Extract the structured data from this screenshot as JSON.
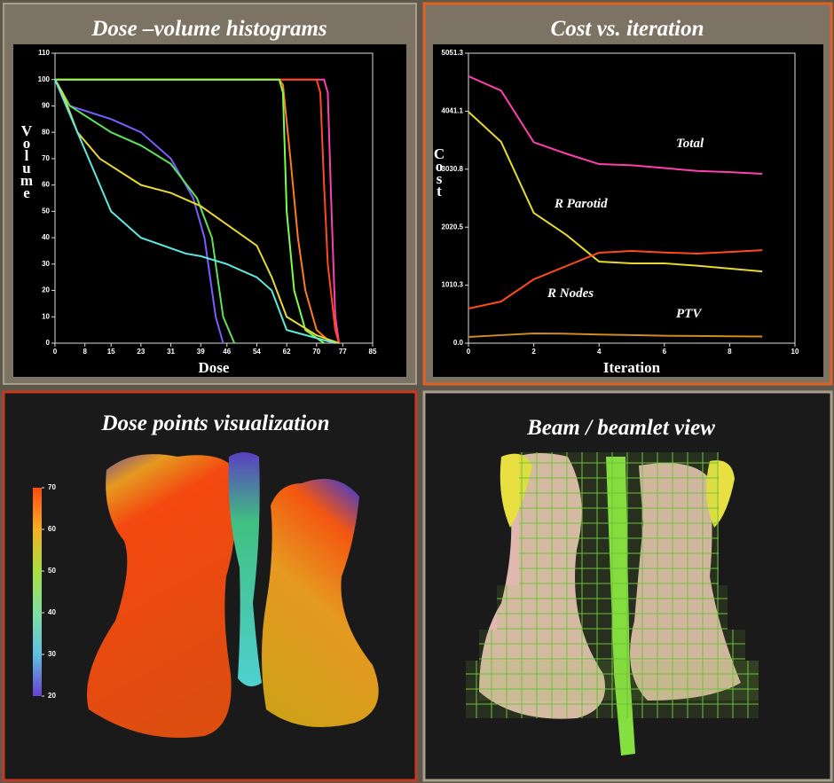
{
  "chart_data": [
    {
      "type": "line",
      "title": "Dose –volume histograms",
      "x_label": "Dose",
      "y_label": "Volume",
      "xlim": [
        0,
        85
      ],
      "xticks": [
        0,
        8,
        15,
        23,
        31,
        39,
        46,
        54,
        62,
        70,
        77,
        85
      ],
      "ylim": [
        0,
        110
      ],
      "yticks": [
        0,
        10,
        20,
        30,
        40,
        50,
        60,
        70,
        80,
        90,
        100,
        110
      ],
      "series": [
        {
          "color": "#ff3fb0",
          "x": [
            0,
            72,
            73,
            74,
            75,
            76
          ],
          "values": [
            100,
            100,
            95,
            50,
            10,
            0
          ]
        },
        {
          "color": "#ff4a1a",
          "x": [
            0,
            70,
            71,
            72,
            73,
            75,
            76
          ],
          "values": [
            100,
            100,
            95,
            60,
            30,
            5,
            0
          ]
        },
        {
          "color": "#ff7a20",
          "x": [
            0,
            60,
            61,
            63,
            65,
            67,
            70,
            74
          ],
          "values": [
            100,
            100,
            98,
            70,
            40,
            20,
            5,
            0
          ]
        },
        {
          "color": "#7cff4a",
          "x": [
            0,
            60,
            61,
            62,
            64,
            67,
            72
          ],
          "values": [
            100,
            100,
            95,
            50,
            20,
            5,
            0
          ]
        },
        {
          "color": "#7a5cff",
          "x": [
            0,
            4,
            15,
            23,
            31,
            37,
            40,
            43,
            45
          ],
          "values": [
            100,
            90,
            85,
            80,
            70,
            55,
            40,
            10,
            0
          ]
        },
        {
          "color": "#5fe05a",
          "x": [
            0,
            4,
            15,
            23,
            31,
            38,
            42,
            45,
            48
          ],
          "values": [
            100,
            90,
            80,
            75,
            68,
            55,
            40,
            10,
            0
          ]
        },
        {
          "color": "#e6d830",
          "x": [
            0,
            2,
            6,
            12,
            23,
            31,
            39,
            46,
            54,
            58,
            62,
            70,
            76
          ],
          "values": [
            100,
            95,
            80,
            70,
            60,
            57,
            52,
            45,
            37,
            25,
            10,
            3,
            0
          ]
        },
        {
          "color": "#60e8e0",
          "x": [
            0,
            3,
            9,
            15,
            23,
            35,
            39,
            46,
            54,
            58,
            62,
            75
          ],
          "values": [
            100,
            90,
            70,
            50,
            40,
            34,
            33,
            30,
            25,
            20,
            5,
            0
          ]
        }
      ]
    },
    {
      "type": "line",
      "title": "Cost vs. iteration",
      "x_label": "Iteration",
      "y_label": "Cost",
      "xlim": [
        0,
        10
      ],
      "xticks": [
        0,
        2,
        4,
        6,
        8,
        10
      ],
      "ylim": [
        0,
        5051.3
      ],
      "yticks": [
        {
          "value": 0,
          "label": "0.0"
        },
        {
          "value": 1010.3,
          "label": "1010.3"
        },
        {
          "value": 2020.5,
          "label": "2020.5"
        },
        {
          "value": 3030.8,
          "label": "3030.8"
        },
        {
          "value": 4041.1,
          "label": "4041.1"
        },
        {
          "value": 5051.3,
          "label": "5051.3"
        }
      ],
      "x": [
        0,
        1,
        2,
        3,
        4,
        5,
        6,
        7,
        8,
        9
      ],
      "series": [
        {
          "name": "Total",
          "color": "#ff3fb0",
          "values": [
            4650,
            4400,
            3500,
            3300,
            3120,
            3100,
            3050,
            3000,
            2980,
            2950
          ]
        },
        {
          "name": "R Parotid",
          "color": "#e6d830",
          "values": [
            4030,
            3506,
            2270,
            1885,
            1421,
            1390,
            1390,
            1350,
            1300,
            1250
          ]
        },
        {
          "name": "R Nodes",
          "color": "#ff4a1a",
          "values": [
            602,
            726,
            1112,
            1344,
            1575,
            1606,
            1580,
            1560,
            1590,
            1620
          ]
        },
        {
          "name": "PTV",
          "color": "#d08a20",
          "values": [
            108,
            140,
            170,
            165,
            150,
            140,
            130,
            125,
            120,
            115
          ]
        }
      ]
    }
  ],
  "dose_points": {
    "title": "Dose points visualization",
    "colorbar_ticks": [
      70,
      60,
      50,
      40,
      30,
      20
    ]
  },
  "beam_view": {
    "title": "Beam / beamlet view"
  }
}
